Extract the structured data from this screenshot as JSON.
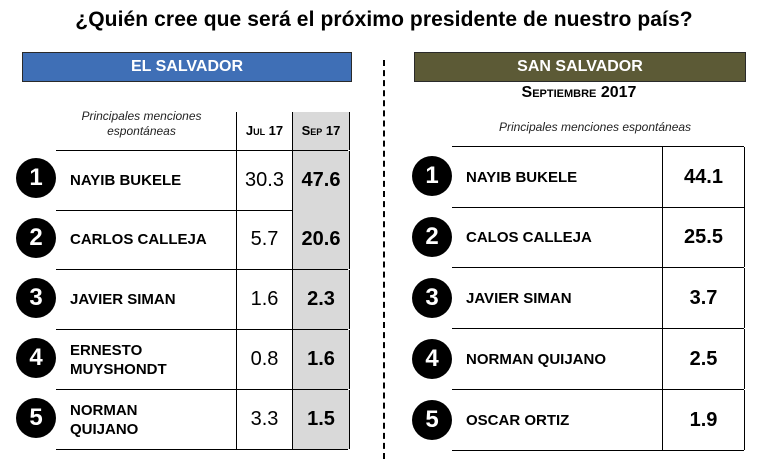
{
  "title": "¿Quién cree que será el próximo presidente de nuestro país?",
  "left": {
    "banner": "EL SALVADOR",
    "note_line1": "Principales menciones",
    "note_line2": "espontáneas",
    "col_jul": "Jul 17",
    "col_sep": "Sep 17",
    "rows": [
      {
        "rank": "1",
        "name": "NAYIB BUKELE",
        "jul": "30.3",
        "sep": "47.6"
      },
      {
        "rank": "2",
        "name": "CARLOS CALLEJA",
        "jul": "5.7",
        "sep": "20.6"
      },
      {
        "rank": "3",
        "name": "JAVIER SIMAN",
        "jul": "1.6",
        "sep": "2.3"
      },
      {
        "rank": "4",
        "name_line1": "ERNESTO",
        "name_line2": "MUYSHONDT",
        "jul": "0.8",
        "sep": "1.6"
      },
      {
        "rank": "5",
        "name_line1": "NORMAN",
        "name_line2": "QUIJANO",
        "jul": "3.3",
        "sep": "1.5"
      }
    ]
  },
  "right": {
    "banner": "SAN SALVADOR",
    "date": "Septiembre 2017",
    "note": "Principales menciones espontáneas",
    "rows": [
      {
        "rank": "1",
        "name": "NAYIB BUKELE",
        "value": "44.1"
      },
      {
        "rank": "2",
        "name": "CALOS CALLEJA",
        "value": "25.5"
      },
      {
        "rank": "3",
        "name": "JAVIER SIMAN",
        "value": "3.7"
      },
      {
        "rank": "4",
        "name": "NORMAN QUIJANO",
        "value": "2.5"
      },
      {
        "rank": "5",
        "name": "OSCAR ORTIZ",
        "value": "1.9"
      }
    ]
  }
}
